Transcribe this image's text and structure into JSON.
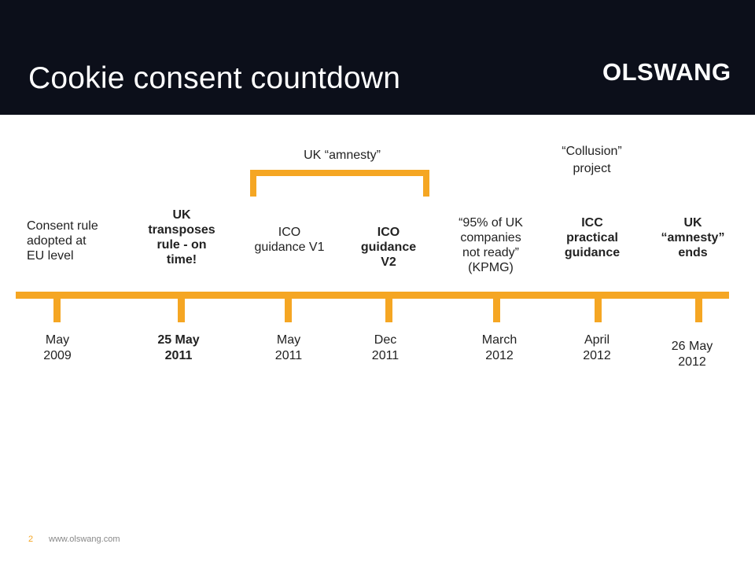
{
  "slide": {
    "title": "Cookie consent countdown",
    "logo": "OLSWANG",
    "bracket_label": "UK “amnesty”",
    "collusion_label_1": "“Collusion”",
    "collusion_label_2": "project",
    "events": [
      {
        "lines": [
          "Consent rule",
          "adopted at",
          "EU level"
        ],
        "date": [
          "May",
          "2009"
        ],
        "bold": false
      },
      {
        "lines": [
          "UK",
          "transposes",
          "rule - on",
          "time!"
        ],
        "date": [
          "25 May",
          "2011"
        ],
        "bold": true
      },
      {
        "lines": [
          "ICO",
          "guidance V1"
        ],
        "date": [
          "May",
          "2011"
        ],
        "bold": false
      },
      {
        "lines": [
          "ICO",
          "guidance",
          "V2"
        ],
        "date": [
          "Dec",
          "2011"
        ],
        "bold": true
      },
      {
        "lines": [
          "“95% of UK",
          "companies",
          "not ready”",
          "(KPMG)"
        ],
        "date": [
          "March",
          "2012"
        ],
        "bold": false
      },
      {
        "lines": [
          "ICC",
          "practical",
          "guidance"
        ],
        "date": [
          "April",
          "2012"
        ],
        "bold": true
      },
      {
        "lines": [
          "UK",
          "“amnesty”",
          "ends"
        ],
        "date": [
          "26 May",
          "2012"
        ],
        "bold": true
      }
    ],
    "accent_color": "#f5a623",
    "header_color": "#0c0f1a"
  },
  "footer": {
    "page_number": "2",
    "url": "www.olswang.com"
  }
}
